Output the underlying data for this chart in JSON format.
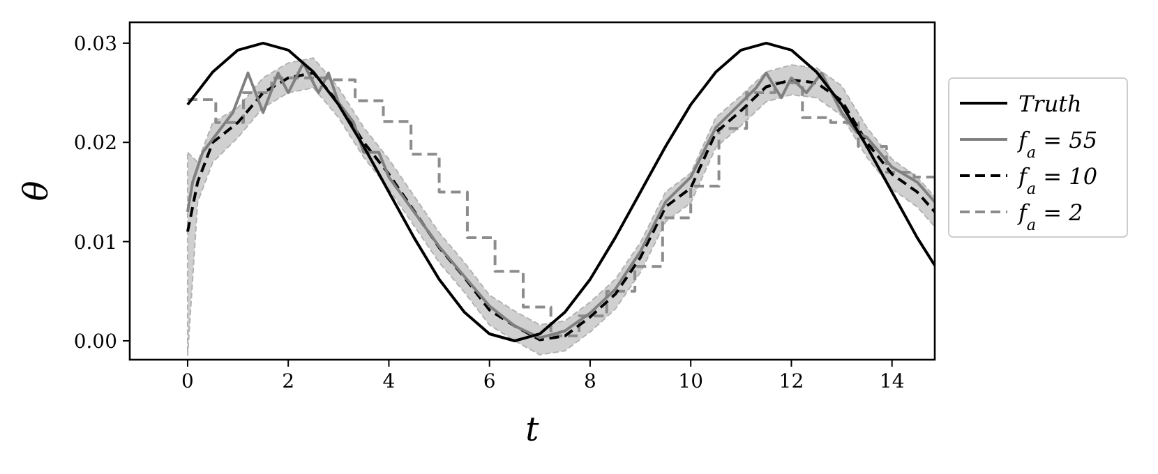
{
  "chart_data": {
    "type": "line",
    "xlabel": "t",
    "ylabel": "θ",
    "xlim": [
      -1.15,
      14.85
    ],
    "ylim": [
      -0.0019,
      0.0321
    ],
    "xticks": [
      0,
      2,
      4,
      6,
      8,
      10,
      12,
      14
    ],
    "yticks": [
      {
        "value": 0,
        "label": "0.00"
      },
      {
        "value": 0.01,
        "label": "0.01"
      },
      {
        "value": 0.02,
        "label": "0.02"
      },
      {
        "value": 0.03,
        "label": "0.03"
      }
    ],
    "grid": false,
    "legend": "right",
    "series": [
      {
        "name": "Truth",
        "color": "#000000",
        "line_style": "solid",
        "x": [
          0,
          0.5,
          1,
          1.5,
          2,
          2.5,
          3,
          3.5,
          4,
          4.5,
          5,
          5.5,
          6,
          6.5,
          7,
          7.5,
          8,
          8.5,
          9,
          9.5,
          10,
          10.5,
          11,
          11.5,
          12,
          12.5,
          13,
          13.5,
          14,
          14.5,
          14.85
        ],
        "values": [
          0.0238,
          0.0271,
          0.0293,
          0.03,
          0.0293,
          0.0271,
          0.0238,
          0.0196,
          0.015,
          0.0104,
          0.0062,
          0.0029,
          0.0007,
          0,
          0.0007,
          0.0029,
          0.0062,
          0.0104,
          0.015,
          0.0196,
          0.0238,
          0.0271,
          0.0293,
          0.03,
          0.0293,
          0.0271,
          0.0238,
          0.0196,
          0.015,
          0.0104,
          0.0076
        ]
      },
      {
        "name": "f$_{a}$ = 55",
        "color": "#808080",
        "line_style": "solid",
        "x": [
          0,
          0.1,
          0.3,
          0.6,
          0.9,
          1.2,
          1.5,
          1.8,
          2,
          2.3,
          2.6,
          2.8,
          3,
          3.3,
          3.5,
          3.8,
          4,
          4.5,
          5,
          5.5,
          6,
          6.5,
          7,
          7.5,
          8,
          8.5,
          9,
          9.5,
          10,
          10.5,
          11,
          11.3,
          11.5,
          11.8,
          12,
          12.3,
          12.6,
          13,
          13.3,
          13.5,
          14,
          14.5,
          14.85
        ],
        "values": [
          0.013,
          0.016,
          0.019,
          0.021,
          0.023,
          0.027,
          0.023,
          0.027,
          0.025,
          0.028,
          0.025,
          0.027,
          0.024,
          0.022,
          0.019,
          0.019,
          0.0165,
          0.013,
          0.0095,
          0.0065,
          0.0035,
          0.0015,
          0.0003,
          0.001,
          0.0028,
          0.0052,
          0.009,
          0.014,
          0.0165,
          0.0215,
          0.024,
          0.0255,
          0.027,
          0.0245,
          0.0265,
          0.025,
          0.027,
          0.023,
          0.021,
          0.0205,
          0.0175,
          0.016,
          0.014
        ]
      },
      {
        "name": "f$_{a}$ = 10",
        "color": "#000000",
        "line_style": "dashed",
        "x": [
          0,
          0.2,
          0.5,
          1,
          1.5,
          2,
          2.5,
          3,
          3.5,
          4,
          4.5,
          5,
          5.5,
          6,
          6.5,
          7,
          7.5,
          8,
          8.5,
          9,
          9.5,
          10,
          10.5,
          11,
          11.5,
          12,
          12.5,
          13,
          13.5,
          14,
          14.5,
          14.85
        ],
        "values": [
          0.011,
          0.016,
          0.02,
          0.022,
          0.025,
          0.0265,
          0.027,
          0.024,
          0.02,
          0.0168,
          0.0131,
          0.0094,
          0.0064,
          0.0031,
          0.0015,
          0.0001,
          0.0005,
          0.0024,
          0.0047,
          0.0084,
          0.0135,
          0.0154,
          0.021,
          0.0232,
          0.0256,
          0.0263,
          0.026,
          0.0242,
          0.02,
          0.0168,
          0.015,
          0.013
        ],
        "lower": [
          -0.0015,
          0.014,
          0.018,
          0.0205,
          0.0235,
          0.025,
          0.0255,
          0.0225,
          0.0185,
          0.0153,
          0.0116,
          0.0079,
          0.0049,
          0.0016,
          0,
          -0.0014,
          -0.001,
          0.0009,
          0.0032,
          0.0069,
          0.012,
          0.0139,
          0.0195,
          0.0217,
          0.0241,
          0.0248,
          0.0245,
          0.0227,
          0.0185,
          0.0153,
          0.0135,
          0.0115
        ],
        "upper": [
          0.019,
          0.018,
          0.022,
          0.0235,
          0.0265,
          0.028,
          0.0285,
          0.0255,
          0.0215,
          0.0183,
          0.0146,
          0.0109,
          0.0079,
          0.0046,
          0.003,
          0.0016,
          0.002,
          0.0039,
          0.0062,
          0.0099,
          0.015,
          0.0169,
          0.0225,
          0.0247,
          0.0271,
          0.0278,
          0.0275,
          0.0257,
          0.0215,
          0.0183,
          0.0165,
          0.0145
        ]
      },
      {
        "name": "f$_{a}$ = 2",
        "color": "#8c8c8c",
        "line_style": "dashed",
        "type": "step",
        "x": [
          0,
          0.56,
          1.11,
          1.67,
          2.22,
          2.78,
          3.33,
          3.89,
          4.44,
          5,
          5.56,
          6.11,
          6.67,
          7.22,
          7.78,
          8.33,
          8.89,
          9.44,
          10,
          10.56,
          11.11,
          11.67,
          12.22,
          12.78,
          13.33,
          13.89,
          14.44,
          14.85
        ],
        "values": [
          0.0243,
          0.022,
          0.025,
          0.0265,
          0.0265,
          0.0263,
          0.0242,
          0.0221,
          0.0188,
          0.015,
          0.0104,
          0.007,
          0.0034,
          0.0005,
          0.0025,
          0.005,
          0.0075,
          0.0124,
          0.0156,
          0.0214,
          0.025,
          0.026,
          0.0225,
          0.022,
          0.0196,
          0.017,
          0.0165,
          0.0165
        ]
      }
    ]
  }
}
